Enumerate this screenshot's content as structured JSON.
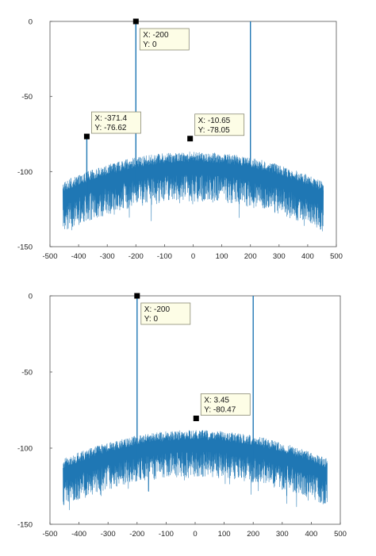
{
  "colors": {
    "line": "#1f77b4",
    "axes": "#555555",
    "marker": "#000000",
    "tip_bg": "#fdfde6",
    "tip_border": "#8a8a74"
  },
  "chart_data": [
    {
      "type": "line",
      "title": "",
      "xlabel": "",
      "ylabel": "",
      "xlim": [
        -500,
        500
      ],
      "ylim": [
        -150,
        0
      ],
      "xticks": [
        -500,
        -400,
        -300,
        -200,
        -100,
        0,
        100,
        200,
        300,
        400,
        500
      ],
      "yticks": [
        0,
        -50,
        -100,
        -150
      ],
      "grid": false,
      "noise_floor": {
        "x_range": [
          -455,
          455
        ],
        "center_db": -92,
        "edge_db": -112,
        "spread_db": 28
      },
      "spikes": [
        {
          "x": -200,
          "y": 0
        },
        {
          "x": 200,
          "y": 0
        },
        {
          "x": -371.4,
          "y": -76.62
        }
      ],
      "datatips": [
        {
          "x": -200,
          "y": 0,
          "label_x": "X: -200",
          "label_y": "Y: 0",
          "position": "below-right"
        },
        {
          "x": -371.4,
          "y": -76.62,
          "label_x": "X: -371.4",
          "label_y": "Y: -76.62",
          "position": "above-right"
        },
        {
          "x": -10.65,
          "y": -78.05,
          "label_x": "X: -10.65",
          "label_y": "Y: -78.05",
          "position": "above-right"
        }
      ]
    },
    {
      "type": "line",
      "title": "",
      "xlabel": "",
      "ylabel": "",
      "xlim": [
        -500,
        500
      ],
      "ylim": [
        -150,
        0
      ],
      "xticks": [
        -500,
        -400,
        -300,
        -200,
        -100,
        0,
        100,
        200,
        300,
        400,
        500
      ],
      "yticks": [
        0,
        -50,
        -100,
        -150
      ],
      "grid": false,
      "noise_floor": {
        "x_range": [
          -455,
          455
        ],
        "center_db": -93,
        "edge_db": -112,
        "spread_db": 26
      },
      "spikes": [
        {
          "x": -200,
          "y": 0
        },
        {
          "x": 200,
          "y": 0
        }
      ],
      "datatips": [
        {
          "x": -200,
          "y": 0,
          "label_x": "X: -200",
          "label_y": "Y: 0",
          "position": "below-right"
        },
        {
          "x": 3.45,
          "y": -80.47,
          "label_x": "X: 3.45",
          "label_y": "Y: -80.47",
          "position": "above-right"
        }
      ]
    }
  ]
}
